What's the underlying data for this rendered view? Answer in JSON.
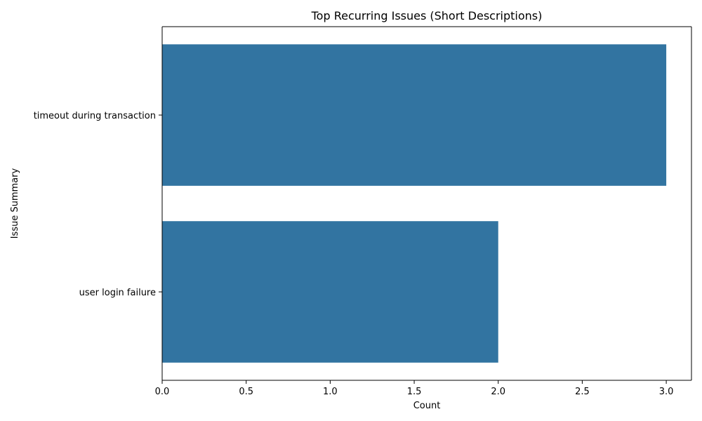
{
  "chart_data": {
    "type": "bar",
    "orientation": "horizontal",
    "title": "Top Recurring Issues (Short Descriptions)",
    "xlabel": "Count",
    "ylabel": "Issue Summary",
    "categories": [
      "timeout during transaction",
      "user login failure"
    ],
    "values": [
      3,
      2
    ],
    "xlim": [
      0,
      3.15
    ],
    "xticks": [
      "0.0",
      "0.5",
      "1.0",
      "1.5",
      "2.0",
      "2.5",
      "3.0"
    ],
    "xtick_values": [
      0,
      0.5,
      1.0,
      1.5,
      2.0,
      2.5,
      3.0
    ],
    "bar_color": "#3274a1",
    "grid": false,
    "legend": "none"
  }
}
